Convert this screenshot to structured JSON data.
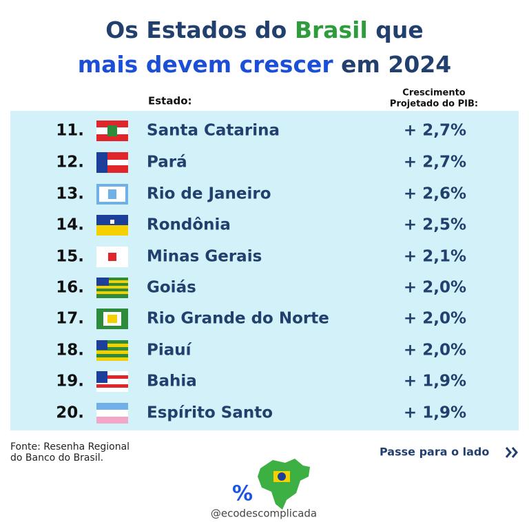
{
  "title": {
    "line1": [
      "Os Estados do ",
      "Brasil",
      " que"
    ],
    "line2": [
      "mais devem crescer",
      " em 2024"
    ]
  },
  "header": {
    "state": "Estado:",
    "growth": [
      "Crescimento",
      "Projetado do PIB:"
    ]
  },
  "rows": [
    [
      "11.",
      "Santa Catarina",
      "+ 2,7%"
    ],
    [
      "12.",
      "Pará",
      "+ 2,7%"
    ],
    [
      "13.",
      "Rio de Janeiro",
      "+ 2,6%"
    ],
    [
      "14.",
      "Rondônia",
      "+ 2,5%"
    ],
    [
      "15.",
      "Minas Gerais",
      "+ 2,1%"
    ],
    [
      "16.",
      "Goiás",
      "+ 2,0%"
    ],
    [
      "17.",
      "Rio Grande do Norte",
      "+ 2,0%"
    ],
    [
      "18.",
      "Piauí",
      "+ 2,0%"
    ],
    [
      "19.",
      "Bahia",
      "+ 1,9%"
    ],
    [
      "20.",
      "Espírito Santo",
      "+ 1,9%"
    ]
  ],
  "footer": {
    "source": [
      "Fonte: Resenha Regional",
      "do Banco do Brasil."
    ],
    "next": "Passe para o lado",
    "handle": "@ecodescomplicada"
  }
}
